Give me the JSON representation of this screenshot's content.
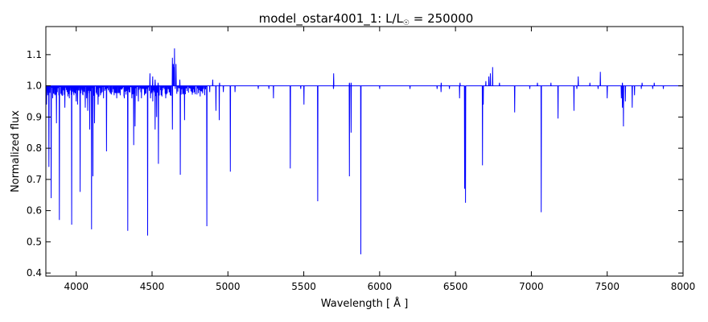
{
  "chart_data": {
    "type": "line",
    "title": "model_ostar4001_1: L/L☉ = 250000",
    "title_parts": {
      "prefix": "model_ostar4001_1: L/L",
      "subscript": "☉",
      "suffix": " = 250000"
    },
    "xlabel": "Wavelength [ Å ]",
    "ylabel": "Normalized flux",
    "xlim": [
      3800,
      8000
    ],
    "ylim": [
      0.39,
      1.19
    ],
    "x_ticks": [
      4000,
      4500,
      5000,
      5500,
      6000,
      6500,
      7000,
      7500,
      8000
    ],
    "x_tick_labels": [
      "4000",
      "4500",
      "5000",
      "5500",
      "6000",
      "6500",
      "7000",
      "7500",
      "8000"
    ],
    "y_ticks": [
      0.4,
      0.5,
      0.6,
      0.7,
      0.8,
      0.9,
      1.0,
      1.1
    ],
    "y_tick_labels": [
      "0.4",
      "0.5",
      "0.6",
      "0.7",
      "0.8",
      "0.9",
      "1.0",
      "1.1"
    ],
    "grid": false,
    "legend": "none",
    "series": [
      {
        "color": "#0000ff",
        "continuum": 1.0,
        "lines": [
          {
            "x": 3805,
            "y": 0.94
          },
          {
            "x": 3812,
            "y": 0.97
          },
          {
            "x": 3820,
            "y": 0.74
          },
          {
            "x": 3835,
            "y": 0.64
          },
          {
            "x": 3845,
            "y": 0.96
          },
          {
            "x": 3860,
            "y": 0.97
          },
          {
            "x": 3870,
            "y": 0.88
          },
          {
            "x": 3889,
            "y": 0.57
          },
          {
            "x": 3905,
            "y": 0.97
          },
          {
            "x": 3925,
            "y": 0.93
          },
          {
            "x": 3940,
            "y": 0.98
          },
          {
            "x": 3955,
            "y": 0.96
          },
          {
            "x": 3970,
            "y": 0.555
          },
          {
            "x": 3985,
            "y": 0.97
          },
          {
            "x": 4000,
            "y": 0.95
          },
          {
            "x": 4009,
            "y": 0.94
          },
          {
            "x": 4026,
            "y": 0.66
          },
          {
            "x": 4045,
            "y": 0.97
          },
          {
            "x": 4060,
            "y": 0.93
          },
          {
            "x": 4069,
            "y": 0.96
          },
          {
            "x": 4076,
            "y": 0.92
          },
          {
            "x": 4089,
            "y": 0.86
          },
          {
            "x": 4101,
            "y": 0.54
          },
          {
            "x": 4110,
            "y": 0.71
          },
          {
            "x": 4121,
            "y": 0.88
          },
          {
            "x": 4144,
            "y": 0.94
          },
          {
            "x": 4160,
            "y": 0.97
          },
          {
            "x": 4180,
            "y": 0.96
          },
          {
            "x": 4200,
            "y": 0.79
          },
          {
            "x": 4220,
            "y": 0.98
          },
          {
            "x": 4250,
            "y": 0.97
          },
          {
            "x": 4267,
            "y": 0.96
          },
          {
            "x": 4290,
            "y": 0.97
          },
          {
            "x": 4317,
            "y": 0.96
          },
          {
            "x": 4340,
            "y": 0.535
          },
          {
            "x": 4349,
            "y": 0.98
          },
          {
            "x": 4367,
            "y": 0.96
          },
          {
            "x": 4379,
            "y": 0.81
          },
          {
            "x": 4388,
            "y": 0.87
          },
          {
            "x": 4410,
            "y": 0.95
          },
          {
            "x": 4430,
            "y": 0.96
          },
          {
            "x": 4450,
            "y": 0.97
          },
          {
            "x": 4471,
            "y": 0.52
          },
          {
            "x": 4490,
            "y": 0.96
          },
          {
            "x": 4505,
            "y": 0.95
          },
          {
            "x": 4520,
            "y": 0.86
          },
          {
            "x": 4530,
            "y": 0.9
          },
          {
            "x": 4542,
            "y": 0.75
          },
          {
            "x": 4560,
            "y": 0.97
          },
          {
            "x": 4590,
            "y": 0.96
          },
          {
            "x": 4620,
            "y": 0.97
          },
          {
            "x": 4634,
            "y": 0.86
          },
          {
            "x": 4686,
            "y": 0.715
          },
          {
            "x": 4714,
            "y": 0.89
          },
          {
            "x": 4861,
            "y": 0.55
          },
          {
            "x": 4880,
            "y": 0.98
          },
          {
            "x": 4921,
            "y": 0.92
          },
          {
            "x": 4943,
            "y": 0.89
          },
          {
            "x": 4970,
            "y": 0.98
          },
          {
            "x": 5016,
            "y": 0.725
          },
          {
            "x": 5047,
            "y": 0.98
          },
          {
            "x": 5200,
            "y": 0.99
          },
          {
            "x": 5270,
            "y": 0.99
          },
          {
            "x": 5300,
            "y": 0.96
          },
          {
            "x": 5411,
            "y": 0.735
          },
          {
            "x": 5480,
            "y": 0.99
          },
          {
            "x": 5501,
            "y": 0.94
          },
          {
            "x": 5592,
            "y": 0.63
          },
          {
            "x": 5696,
            "y": 0.99
          },
          {
            "x": 5801,
            "y": 0.71
          },
          {
            "x": 5812,
            "y": 0.85
          },
          {
            "x": 5876,
            "y": 0.46
          },
          {
            "x": 6000,
            "y": 0.99
          },
          {
            "x": 6200,
            "y": 0.99
          },
          {
            "x": 6379,
            "y": 0.99
          },
          {
            "x": 6405,
            "y": 0.98
          },
          {
            "x": 6460,
            "y": 0.99
          },
          {
            "x": 6527,
            "y": 0.96
          },
          {
            "x": 6560,
            "y": 0.67
          },
          {
            "x": 6563,
            "y": 0.76
          },
          {
            "x": 6566,
            "y": 0.625
          },
          {
            "x": 6678,
            "y": 0.745
          },
          {
            "x": 6683,
            "y": 0.94
          },
          {
            "x": 6890,
            "y": 0.915
          },
          {
            "x": 6990,
            "y": 0.99
          },
          {
            "x": 7065,
            "y": 0.595
          },
          {
            "x": 7176,
            "y": 0.895
          },
          {
            "x": 7281,
            "y": 0.92
          },
          {
            "x": 7300,
            "y": 0.99
          },
          {
            "x": 7440,
            "y": 0.99
          },
          {
            "x": 7500,
            "y": 0.96
          },
          {
            "x": 7593,
            "y": 0.96
          },
          {
            "x": 7600,
            "y": 0.93
          },
          {
            "x": 7607,
            "y": 0.87
          },
          {
            "x": 7620,
            "y": 0.95
          },
          {
            "x": 7665,
            "y": 0.93
          },
          {
            "x": 7680,
            "y": 0.97
          },
          {
            "x": 7725,
            "y": 0.99
          },
          {
            "x": 7800,
            "y": 0.99
          },
          {
            "x": 7870,
            "y": 0.99
          }
        ],
        "emission": [
          {
            "x": 4486,
            "y": 1.04
          },
          {
            "x": 4504,
            "y": 1.03
          },
          {
            "x": 4520,
            "y": 1.02
          },
          {
            "x": 4540,
            "y": 1.01
          },
          {
            "x": 4634,
            "y": 1.09
          },
          {
            "x": 4640,
            "y": 1.07
          },
          {
            "x": 4642,
            "y": 1.06
          },
          {
            "x": 4648,
            "y": 1.12
          },
          {
            "x": 4658,
            "y": 1.07
          },
          {
            "x": 4683,
            "y": 1.02
          },
          {
            "x": 4900,
            "y": 1.02
          },
          {
            "x": 4945,
            "y": 1.01
          },
          {
            "x": 5697,
            "y": 1.04
          },
          {
            "x": 5801,
            "y": 1.01
          },
          {
            "x": 5812,
            "y": 1.01
          },
          {
            "x": 6406,
            "y": 1.01
          },
          {
            "x": 6530,
            "y": 1.01
          },
          {
            "x": 6700,
            "y": 1.015
          },
          {
            "x": 6720,
            "y": 1.03
          },
          {
            "x": 6730,
            "y": 1.04
          },
          {
            "x": 6745,
            "y": 1.06
          },
          {
            "x": 6790,
            "y": 1.01
          },
          {
            "x": 7040,
            "y": 1.01
          },
          {
            "x": 7129,
            "y": 1.01
          },
          {
            "x": 7309,
            "y": 1.03
          },
          {
            "x": 7386,
            "y": 1.01
          },
          {
            "x": 7455,
            "y": 1.045
          },
          {
            "x": 7600,
            "y": 1.01
          },
          {
            "x": 7730,
            "y": 1.01
          },
          {
            "x": 7810,
            "y": 1.01
          }
        ]
      }
    ]
  }
}
